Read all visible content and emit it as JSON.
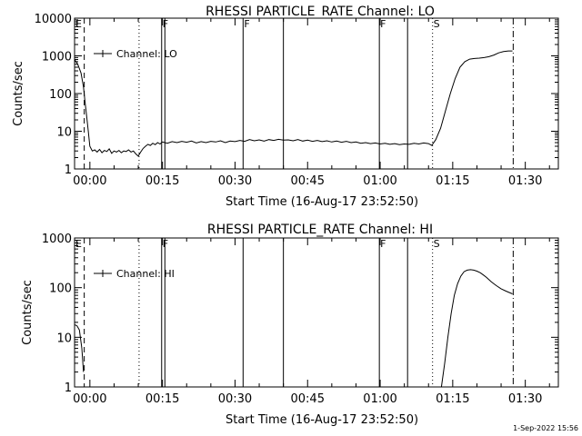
{
  "footer": {
    "timestamp": "1-Sep-2022 15:56"
  },
  "chart_data": [
    {
      "type": "line",
      "title": "RHESSI PARTICLE_RATE Channel: LO",
      "xlabel": "Start Time (16-Aug-17 23:52:50)",
      "ylabel": "Counts/sec",
      "yscale": "log",
      "xlim_minutes_after_start": [
        4.0,
        104.0
      ],
      "ylim": [
        1,
        10000
      ],
      "x_ticks": [
        "00:00",
        "00:15",
        "00:30",
        "00:45",
        "01:00",
        "01:15",
        "01:30"
      ],
      "y_ticks": [
        "1",
        "10",
        "100",
        "1000",
        "10000"
      ],
      "legend": {
        "position": "top-left",
        "label": "Channel: LO"
      },
      "markers": [
        {
          "time": "23:56:50",
          "style": "dash-dot",
          "label": "E"
        },
        {
          "time": "23:58:50",
          "style": "dashed",
          "label": ""
        },
        {
          "time": "00:10:10",
          "style": "dotted",
          "label": ""
        },
        {
          "time": "00:14:50",
          "style": "solid",
          "label": "F"
        },
        {
          "time": "00:15:30",
          "style": "solid",
          "label": ""
        },
        {
          "time": "00:31:40",
          "style": "solid",
          "label": "F"
        },
        {
          "time": "00:40:00",
          "style": "solid",
          "label": ""
        },
        {
          "time": "00:59:50",
          "style": "solid",
          "label": "F"
        },
        {
          "time": "01:05:40",
          "style": "solid",
          "label": ""
        },
        {
          "time": "01:10:50",
          "style": "dotted",
          "label": "S"
        },
        {
          "time": "01:27:30",
          "style": "dash-dot",
          "label": ""
        }
      ],
      "series": [
        {
          "name": "Channel: LO",
          "segments": [
            {
              "x": [
                "23:56:50",
                "23:57:30",
                "23:58:10",
                "23:58:40",
                "23:59:00",
                "23:59:20",
                "23:59:40",
                "00:00:00",
                "00:00:30",
                "00:01:00",
                "00:01:30",
                "00:02:00",
                "00:02:30",
                "00:03:00",
                "00:03:30",
                "00:04:00",
                "00:04:30",
                "00:05:00",
                "00:05:30",
                "00:06:00",
                "00:06:30",
                "00:07:00",
                "00:07:30",
                "00:08:00",
                "00:08:30",
                "00:09:00",
                "00:09:30",
                "00:10:00",
                "00:10:30",
                "00:11:00",
                "00:11:30",
                "00:12:00",
                "00:12:30",
                "00:13:00",
                "00:13:30",
                "00:14:00",
                "00:14:30",
                "00:15:00",
                "00:16:00",
                "00:17:00",
                "00:18:00",
                "00:19:00",
                "00:20:00",
                "00:21:00",
                "00:22:00",
                "00:23:00",
                "00:24:00",
                "00:25:00",
                "00:26:00",
                "00:27:00",
                "00:28:00",
                "00:29:00",
                "00:30:00",
                "00:31:00",
                "00:32:00",
                "00:33:00",
                "00:34:00",
                "00:35:00",
                "00:36:00",
                "00:37:00",
                "00:38:00",
                "00:39:00",
                "00:40:00",
                "00:41:00",
                "00:42:00",
                "00:43:00",
                "00:44:00",
                "00:45:00",
                "00:46:00",
                "00:47:00",
                "00:48:00",
                "00:49:00",
                "00:50:00",
                "00:51:00",
                "00:52:00",
                "00:53:00",
                "00:54:00",
                "00:55:00",
                "00:56:00",
                "00:57:00",
                "00:58:00",
                "00:59:00",
                "01:00:00",
                "01:01:00",
                "01:02:00",
                "01:03:00",
                "01:04:00",
                "01:05:00",
                "01:06:00",
                "01:07:00",
                "01:08:00",
                "01:09:00",
                "01:10:00",
                "01:10:40",
                "01:11:30",
                "01:12:30",
                "01:13:30",
                "01:14:30",
                "01:15:30",
                "01:16:30",
                "01:17:30",
                "01:18:30",
                "01:19:30",
                "01:20:30",
                "01:21:30",
                "01:22:30",
                "01:23:30",
                "01:24:30",
                "01:25:30",
                "01:26:30",
                "01:27:20"
              ],
              "y": [
                800,
                600,
                350,
                150,
                60,
                25,
                10,
                4,
                3,
                3.2,
                2.8,
                3.3,
                2.7,
                3.1,
                2.9,
                3.4,
                2.6,
                3,
                2.8,
                3.1,
                2.7,
                3,
                2.9,
                3.2,
                2.8,
                3,
                2.5,
                2.2,
                2.8,
                3.5,
                4,
                4.5,
                4.2,
                4.8,
                4.4,
                5,
                4.6,
                5.2,
                4.8,
                5.3,
                5,
                5.4,
                5.1,
                5.5,
                4.9,
                5.3,
                5,
                5.4,
                5.2,
                5.6,
                5,
                5.5,
                5.3,
                5.7,
                5.4,
                6,
                5.6,
                5.9,
                5.5,
                6,
                5.7,
                6.1,
                5.8,
                5.9,
                5.6,
                6,
                5.5,
                5.8,
                5.4,
                5.7,
                5.3,
                5.6,
                5.2,
                5.5,
                5.1,
                5.4,
                5,
                5.2,
                4.8,
                5,
                4.7,
                4.9,
                4.6,
                4.8,
                4.5,
                4.7,
                4.4,
                4.6,
                4.5,
                4.8,
                4.6,
                4.9,
                4.7,
                4.2,
                6,
                12,
                35,
                100,
                250,
                500,
                700,
                820,
                850,
                870,
                900,
                950,
                1050,
                1200,
                1300,
                1350,
                1350
              ]
            }
          ]
        }
      ]
    },
    {
      "type": "line",
      "title": "RHESSI PARTICLE_RATE Channel: HI",
      "xlabel": "Start Time (16-Aug-17 23:52:50)",
      "ylabel": "Counts/sec",
      "yscale": "log",
      "xlim_minutes_after_start": [
        4.0,
        104.0
      ],
      "ylim": [
        1,
        1000
      ],
      "x_ticks": [
        "00:00",
        "00:15",
        "00:30",
        "00:45",
        "01:00",
        "01:15",
        "01:30"
      ],
      "y_ticks": [
        "1",
        "10",
        "100",
        "1000"
      ],
      "legend": {
        "position": "top-left",
        "label": "Channel: HI"
      },
      "markers": [
        {
          "time": "23:56:50",
          "style": "dash-dot",
          "label": "E"
        },
        {
          "time": "23:58:50",
          "style": "dashed",
          "label": ""
        },
        {
          "time": "00:10:10",
          "style": "dotted",
          "label": ""
        },
        {
          "time": "00:14:50",
          "style": "solid",
          "label": "F"
        },
        {
          "time": "00:15:30",
          "style": "solid",
          "label": ""
        },
        {
          "time": "00:31:40",
          "style": "solid",
          "label": ""
        },
        {
          "time": "00:40:00",
          "style": "solid",
          "label": ""
        },
        {
          "time": "00:59:50",
          "style": "solid",
          "label": "F"
        },
        {
          "time": "01:05:40",
          "style": "solid",
          "label": ""
        },
        {
          "time": "01:10:50",
          "style": "dotted",
          "label": "S"
        },
        {
          "time": "01:27:30",
          "style": "dash-dot",
          "label": ""
        }
      ],
      "series": [
        {
          "name": "Channel: HI",
          "segments": [
            {
              "x": [
                "23:56:50",
                "23:57:20",
                "23:57:50",
                "23:58:20",
                "23:58:40"
              ],
              "y": [
                18,
                17,
                14,
                6,
                2
              ]
            },
            {
              "x": [
                "01:12:40",
                "01:13:20",
                "01:14:00",
                "01:14:40",
                "01:15:20",
                "01:16:00",
                "01:16:40",
                "01:17:20",
                "01:18:00",
                "01:18:40",
                "01:19:20",
                "01:20:00",
                "01:20:40",
                "01:21:20",
                "01:22:00",
                "01:23:00",
                "01:24:00",
                "01:25:00",
                "01:26:00",
                "01:27:20"
              ],
              "y": [
                1,
                3,
                10,
                30,
                70,
                120,
                170,
                210,
                225,
                230,
                225,
                215,
                200,
                180,
                160,
                130,
                110,
                95,
                85,
                75
              ]
            }
          ]
        }
      ]
    }
  ]
}
